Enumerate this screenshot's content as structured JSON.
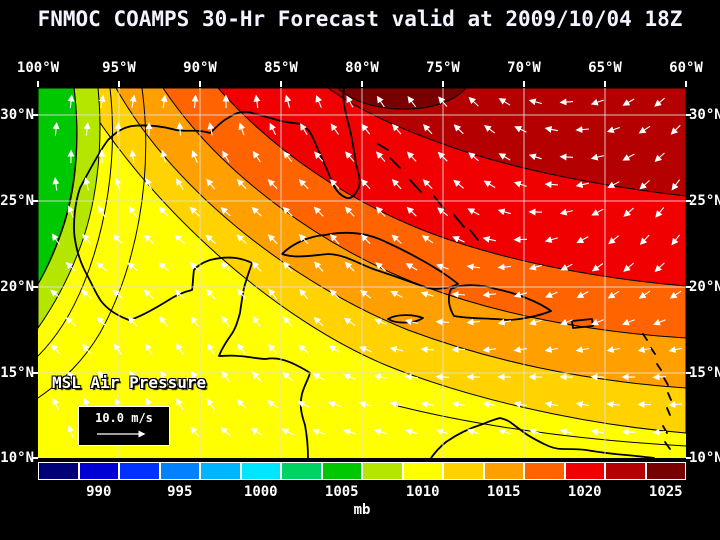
{
  "title": "FNMOC COAMPS 30-Hr Forecast valid at 2009/10/04 18Z",
  "axes": {
    "lon_labels": [
      "100°W",
      "95°W",
      "90°W",
      "85°W",
      "80°W",
      "75°W",
      "70°W",
      "65°W",
      "60°W"
    ],
    "lat_labels": [
      "30°N",
      "25°N",
      "20°N",
      "15°N",
      "10°N"
    ]
  },
  "overlay": {
    "field_label": "MSL Air Pressure",
    "wind_scale_label": "10.0 m/s"
  },
  "colorbar": {
    "unit": "mb",
    "tick_labels": [
      "990",
      "995",
      "1000",
      "1005",
      "1010",
      "1015",
      "1020",
      "1025"
    ],
    "segment_colors": [
      "#000078",
      "#0000d2",
      "#0032ff",
      "#0082ff",
      "#00b4ff",
      "#00e6ff",
      "#00d264",
      "#00c800",
      "#b4e600",
      "#ffff00",
      "#ffd200",
      "#ffa000",
      "#ff6400",
      "#f00000",
      "#b40000",
      "#780000"
    ]
  },
  "wind": {
    "arrow_color": "#ffffff"
  },
  "colors": {
    "background": "#000000",
    "text": "#ffffff",
    "grid": "#e2e2e2"
  }
}
